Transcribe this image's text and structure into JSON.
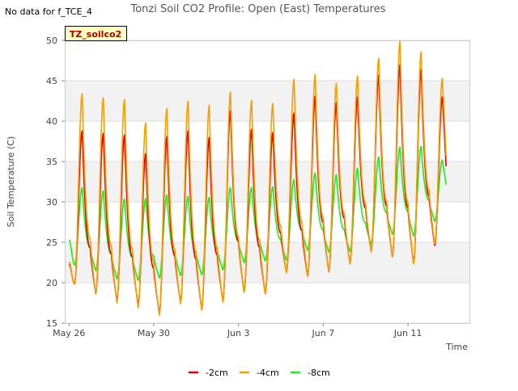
{
  "no_data_note": "No data for f_TCE_4",
  "chart_data": {
    "type": "line",
    "title": "Tonzi Soil CO2 Profile: Open (East) Temperatures",
    "xlabel": "Time",
    "ylabel": "Soil Temperature (C)",
    "ylim": [
      15,
      50
    ],
    "y_ticks": [
      15,
      20,
      25,
      30,
      35,
      40,
      45,
      50
    ],
    "x_range_days": [
      -0.2,
      18.9
    ],
    "x_ticks": [
      {
        "label": "May 26",
        "day": 0
      },
      {
        "label": "May 30",
        "day": 4
      },
      {
        "label": "Jun 3",
        "day": 8
      },
      {
        "label": "Jun 7",
        "day": 12
      },
      {
        "label": "Jun 11",
        "day": 16
      }
    ],
    "site_badge": "TZ_soilco2",
    "grid": "alternating horizontal bands",
    "legend_position": "bottom-center",
    "series": [
      {
        "name": "-2cm",
        "color": "#e00000",
        "start": 22.3,
        "end": 24.6,
        "days": [
          {
            "max": 38.8,
            "min": 19.9
          },
          {
            "max": 38.5,
            "min": 18.7
          },
          {
            "max": 38.3,
            "min": 17.8
          },
          {
            "max": 36.0,
            "min": 17.3
          },
          {
            "max": 38.1,
            "min": 16.3
          },
          {
            "max": 38.8,
            "min": 17.6
          },
          {
            "max": 38.0,
            "min": 16.8
          },
          {
            "max": 41.3,
            "min": 17.8
          },
          {
            "max": 39.0,
            "min": 18.9
          },
          {
            "max": 38.6,
            "min": 18.7
          },
          {
            "max": 41.0,
            "min": 21.3
          },
          {
            "max": 43.1,
            "min": 20.8
          },
          {
            "max": 42.3,
            "min": 21.4
          },
          {
            "max": 43.0,
            "min": 22.4
          },
          {
            "max": 45.7,
            "min": 23.9
          },
          {
            "max": 47.0,
            "min": 23.2
          },
          {
            "max": 46.4,
            "min": 22.4
          },
          {
            "max": 43.0,
            "min": 24.6
          }
        ]
      },
      {
        "name": "-4cm",
        "color": "#f5a000",
        "start": 22.6,
        "end": 24.8,
        "days": [
          {
            "max": 43.4,
            "min": 19.8
          },
          {
            "max": 42.9,
            "min": 18.6
          },
          {
            "max": 42.7,
            "min": 17.5
          },
          {
            "max": 39.8,
            "min": 16.9
          },
          {
            "max": 41.6,
            "min": 16.0
          },
          {
            "max": 42.5,
            "min": 17.4
          },
          {
            "max": 42.0,
            "min": 16.6
          },
          {
            "max": 43.6,
            "min": 17.6
          },
          {
            "max": 42.6,
            "min": 18.8
          },
          {
            "max": 42.2,
            "min": 18.6
          },
          {
            "max": 45.2,
            "min": 21.2
          },
          {
            "max": 45.8,
            "min": 20.8
          },
          {
            "max": 44.7,
            "min": 21.3
          },
          {
            "max": 45.6,
            "min": 22.3
          },
          {
            "max": 47.8,
            "min": 23.8
          },
          {
            "max": 49.9,
            "min": 23.2
          },
          {
            "max": 48.6,
            "min": 22.3
          },
          {
            "max": 45.3,
            "min": 24.8
          }
        ]
      },
      {
        "name": "-8cm",
        "color": "#22e822",
        "start": 25.3,
        "end": 28.6,
        "days": [
          {
            "max": 31.8,
            "min": 22.2
          },
          {
            "max": 31.4,
            "min": 21.5
          },
          {
            "max": 30.4,
            "min": 20.5
          },
          {
            "max": 30.4,
            "min": 20.3
          },
          {
            "max": 30.9,
            "min": 20.6
          },
          {
            "max": 30.7,
            "min": 20.9
          },
          {
            "max": 30.6,
            "min": 21.0
          },
          {
            "max": 31.8,
            "min": 21.6
          },
          {
            "max": 31.8,
            "min": 22.5
          },
          {
            "max": 31.9,
            "min": 22.7
          },
          {
            "max": 32.8,
            "min": 22.8
          },
          {
            "max": 33.6,
            "min": 24.0
          },
          {
            "max": 33.4,
            "min": 23.8
          },
          {
            "max": 34.2,
            "min": 23.9
          },
          {
            "max": 35.6,
            "min": 24.8
          },
          {
            "max": 36.8,
            "min": 26.0
          },
          {
            "max": 36.9,
            "min": 25.8
          },
          {
            "max": 35.2,
            "min": 27.6
          }
        ]
      }
    ]
  }
}
